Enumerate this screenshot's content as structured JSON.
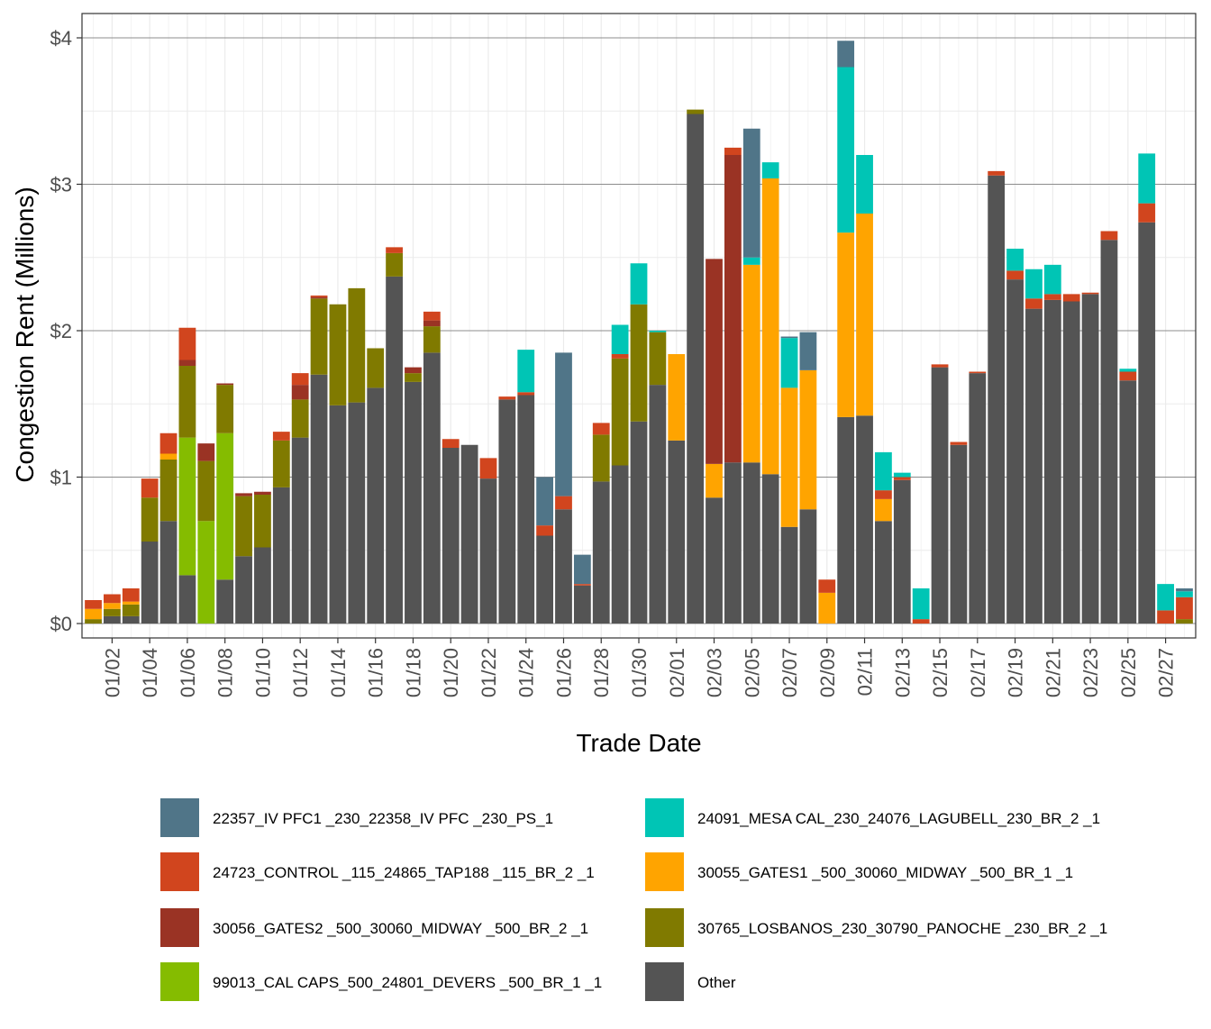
{
  "chart_data": {
    "type": "bar",
    "stacked": true,
    "xlabel": "Trade Date",
    "ylabel": "Congestion Rent (Millions)",
    "ylim": [
      0,
      4.15
    ],
    "yticks": [
      0,
      1,
      2,
      3,
      4
    ],
    "ytick_labels": [
      "$0",
      "$1",
      "$2",
      "$3",
      "$4"
    ],
    "xtick_labels": [
      "01/02",
      "01/04",
      "01/06",
      "01/08",
      "01/10",
      "01/12",
      "01/14",
      "01/16",
      "01/18",
      "01/20",
      "01/22",
      "01/24",
      "01/26",
      "01/28",
      "01/30",
      "02/01",
      "02/03",
      "02/05",
      "02/07",
      "02/09",
      "02/11",
      "02/13",
      "02/15",
      "02/17",
      "02/19",
      "02/21",
      "02/23",
      "02/25",
      "02/27"
    ],
    "categories": [
      "01/01",
      "01/02",
      "01/03",
      "01/04",
      "01/05",
      "01/06",
      "01/07",
      "01/08",
      "01/09",
      "01/10",
      "01/11",
      "01/12",
      "01/13",
      "01/14",
      "01/15",
      "01/16",
      "01/17",
      "01/18",
      "01/19",
      "01/20",
      "01/21",
      "01/22",
      "01/23",
      "01/24",
      "01/25",
      "01/26",
      "01/27",
      "01/28",
      "01/29",
      "01/30",
      "01/31",
      "02/01",
      "02/02",
      "02/03",
      "02/04",
      "02/05",
      "02/06",
      "02/07",
      "02/08",
      "02/09",
      "02/10",
      "02/11",
      "02/12",
      "02/13",
      "02/14",
      "02/15",
      "02/16",
      "02/17",
      "02/18",
      "02/19",
      "02/20",
      "02/21",
      "02/22",
      "02/23",
      "02/24",
      "02/25",
      "02/26",
      "02/27",
      "02/28"
    ],
    "legend_position": "bottom",
    "series": [
      {
        "name": "Other",
        "color": "#545454",
        "values": [
          0,
          0.05,
          0.05,
          0.56,
          0.7,
          0.33,
          0,
          0.3,
          0.46,
          0.52,
          0.93,
          1.27,
          1.7,
          1.49,
          1.51,
          1.61,
          2.37,
          1.65,
          1.85,
          1.2,
          1.22,
          0.99,
          1.53,
          1.56,
          0.6,
          0.78,
          0.26,
          0.97,
          1.08,
          1.38,
          1.63,
          1.25,
          3.48,
          0.86,
          1.1,
          1.1,
          1.02,
          0.66,
          0.78,
          0,
          1.41,
          1.42,
          0.7,
          0.98,
          0,
          1.75,
          1.22,
          1.71,
          3.06,
          2.35,
          2.15,
          2.21,
          2.2,
          2.25,
          2.62,
          1.66,
          2.74,
          0,
          0
        ]
      },
      {
        "name": "99013_CAL CAPS_500_24801_DEVERS  _500_BR_1 _1",
        "color": "#85BC00",
        "values": [
          0,
          0,
          0,
          0,
          0,
          0.94,
          0.7,
          1.0,
          0,
          0,
          0,
          0,
          0,
          0,
          0,
          0,
          0,
          0,
          0,
          0,
          0,
          0,
          0,
          0,
          0,
          0,
          0,
          0,
          0,
          0,
          0,
          0,
          0,
          0,
          0,
          0,
          0,
          0,
          0,
          0,
          0,
          0,
          0,
          0,
          0,
          0,
          0,
          0,
          0,
          0,
          0,
          0,
          0,
          0,
          0,
          0,
          0,
          0,
          0
        ]
      },
      {
        "name": "30765_LOSBANOS_230_30790_PANOCHE _230_BR_2 _1",
        "color": "#807A00",
        "values": [
          0.03,
          0.05,
          0.08,
          0.3,
          0.42,
          0.49,
          0.41,
          0.33,
          0.41,
          0.36,
          0.32,
          0.26,
          0.52,
          0.69,
          0.78,
          0.27,
          0.16,
          0.06,
          0.18,
          0,
          0,
          0,
          0,
          0,
          0,
          0,
          0,
          0.32,
          0.73,
          0.8,
          0.36,
          0,
          0.03,
          0,
          0,
          0,
          0,
          0,
          0,
          0,
          0,
          0,
          0,
          0,
          0,
          0,
          0,
          0,
          0,
          0,
          0,
          0,
          0,
          0,
          0,
          0,
          0,
          0,
          0.03
        ]
      },
      {
        "name": "30055_GATES1  _500_30060_MIDWAY  _500_BR_1 _1",
        "color": "#FFA400",
        "values": [
          0.07,
          0.04,
          0.02,
          0,
          0.04,
          0,
          0,
          0,
          0,
          0,
          0,
          0,
          0,
          0,
          0,
          0,
          0,
          0,
          0,
          0,
          0,
          0,
          0,
          0,
          0,
          0,
          0,
          0,
          0,
          0,
          0,
          0.59,
          0,
          0.23,
          0,
          1.35,
          2.02,
          0.95,
          0.95,
          0.21,
          1.26,
          1.38,
          0.15,
          0,
          0,
          0,
          0,
          0,
          0,
          0,
          0,
          0,
          0,
          0,
          0,
          0,
          0,
          0,
          0
        ]
      },
      {
        "name": "30056_GATES2  _500_30060_MIDWAY  _500_BR_2 _1",
        "color": "#9A3324",
        "values": [
          0,
          0,
          0,
          0,
          0,
          0.04,
          0.12,
          0.01,
          0.02,
          0.02,
          0,
          0.1,
          0.01,
          0,
          0,
          0,
          0,
          0.04,
          0.04,
          0,
          0,
          0,
          0,
          0,
          0,
          0,
          0,
          0,
          0,
          0,
          0,
          0,
          0,
          1.4,
          2.1,
          0,
          0,
          0,
          0,
          0,
          0,
          0,
          0,
          0,
          0,
          0,
          0,
          0,
          0,
          0,
          0,
          0,
          0,
          0,
          0,
          0,
          0,
          0,
          0
        ]
      },
      {
        "name": "24723_CONTROL _115_24865_TAP188  _115_BR_2 _1",
        "color": "#D1451E",
        "values": [
          0.06,
          0.06,
          0.09,
          0.13,
          0.14,
          0.22,
          0,
          0,
          0,
          0,
          0.06,
          0.08,
          0.01,
          0,
          0,
          0,
          0.04,
          0,
          0.06,
          0.06,
          0,
          0.14,
          0.02,
          0.02,
          0.07,
          0.09,
          0.01,
          0.08,
          0.03,
          0,
          0,
          0,
          0,
          0,
          0.05,
          0,
          0,
          0,
          0,
          0.09,
          0,
          0,
          0.06,
          0.02,
          0.03,
          0.02,
          0.02,
          0.01,
          0.03,
          0.06,
          0.07,
          0.04,
          0.05,
          0.01,
          0.06,
          0.06,
          0.13,
          0.09,
          0.15
        ]
      },
      {
        "name": "24091_MESA CAL_230_24076_LAGUBELL_230_BR_2 _1",
        "color": "#00C5B5",
        "values": [
          0,
          0,
          0,
          0,
          0,
          0,
          0,
          0,
          0,
          0,
          0,
          0,
          0,
          0,
          0,
          0,
          0,
          0,
          0,
          0,
          0,
          0,
          0,
          0.29,
          0,
          0,
          0,
          0,
          0.2,
          0.28,
          0.01,
          0,
          0,
          0,
          0,
          0.05,
          0.11,
          0.34,
          0,
          0,
          1.13,
          0.4,
          0.26,
          0.03,
          0.21,
          0,
          0,
          0,
          0,
          0.15,
          0.2,
          0.2,
          0,
          0,
          0,
          0.02,
          0.34,
          0.18,
          0.04
        ]
      },
      {
        "name": "22357_IV PFC1 _230_22358_IV PFC  _230_PS_1",
        "color": "#507588",
        "values": [
          0,
          0,
          0,
          0,
          0,
          0,
          0,
          0,
          0,
          0,
          0,
          0,
          0,
          0,
          0,
          0,
          0,
          0,
          0,
          0,
          0,
          0,
          0,
          0,
          0.33,
          0.98,
          0.2,
          0,
          0,
          0,
          0,
          0,
          0,
          0,
          0,
          0.88,
          0,
          0.01,
          0.26,
          0,
          0.18,
          0,
          0,
          0,
          0,
          0,
          0,
          0,
          0,
          0,
          0,
          0,
          0,
          0,
          0,
          0,
          0,
          0,
          0.02
        ]
      }
    ],
    "legend": [
      {
        "name": "22357_IV PFC1 _230_22358_IV PFC  _230_PS_1",
        "color": "#507588"
      },
      {
        "name": "24723_CONTROL _115_24865_TAP188  _115_BR_2 _1",
        "color": "#D1451E"
      },
      {
        "name": "30056_GATES2  _500_30060_MIDWAY  _500_BR_2 _1",
        "color": "#9A3324"
      },
      {
        "name": "99013_CAL CAPS_500_24801_DEVERS  _500_BR_1 _1",
        "color": "#85BC00"
      },
      {
        "name": "24091_MESA CAL_230_24076_LAGUBELL_230_BR_2 _1",
        "color": "#00C5B5"
      },
      {
        "name": "30055_GATES1  _500_30060_MIDWAY  _500_BR_1 _1",
        "color": "#FFA400"
      },
      {
        "name": "30765_LOSBANOS_230_30790_PANOCHE _230_BR_2 _1",
        "color": "#807A00"
      },
      {
        "name": "Other",
        "color": "#545454"
      }
    ]
  }
}
